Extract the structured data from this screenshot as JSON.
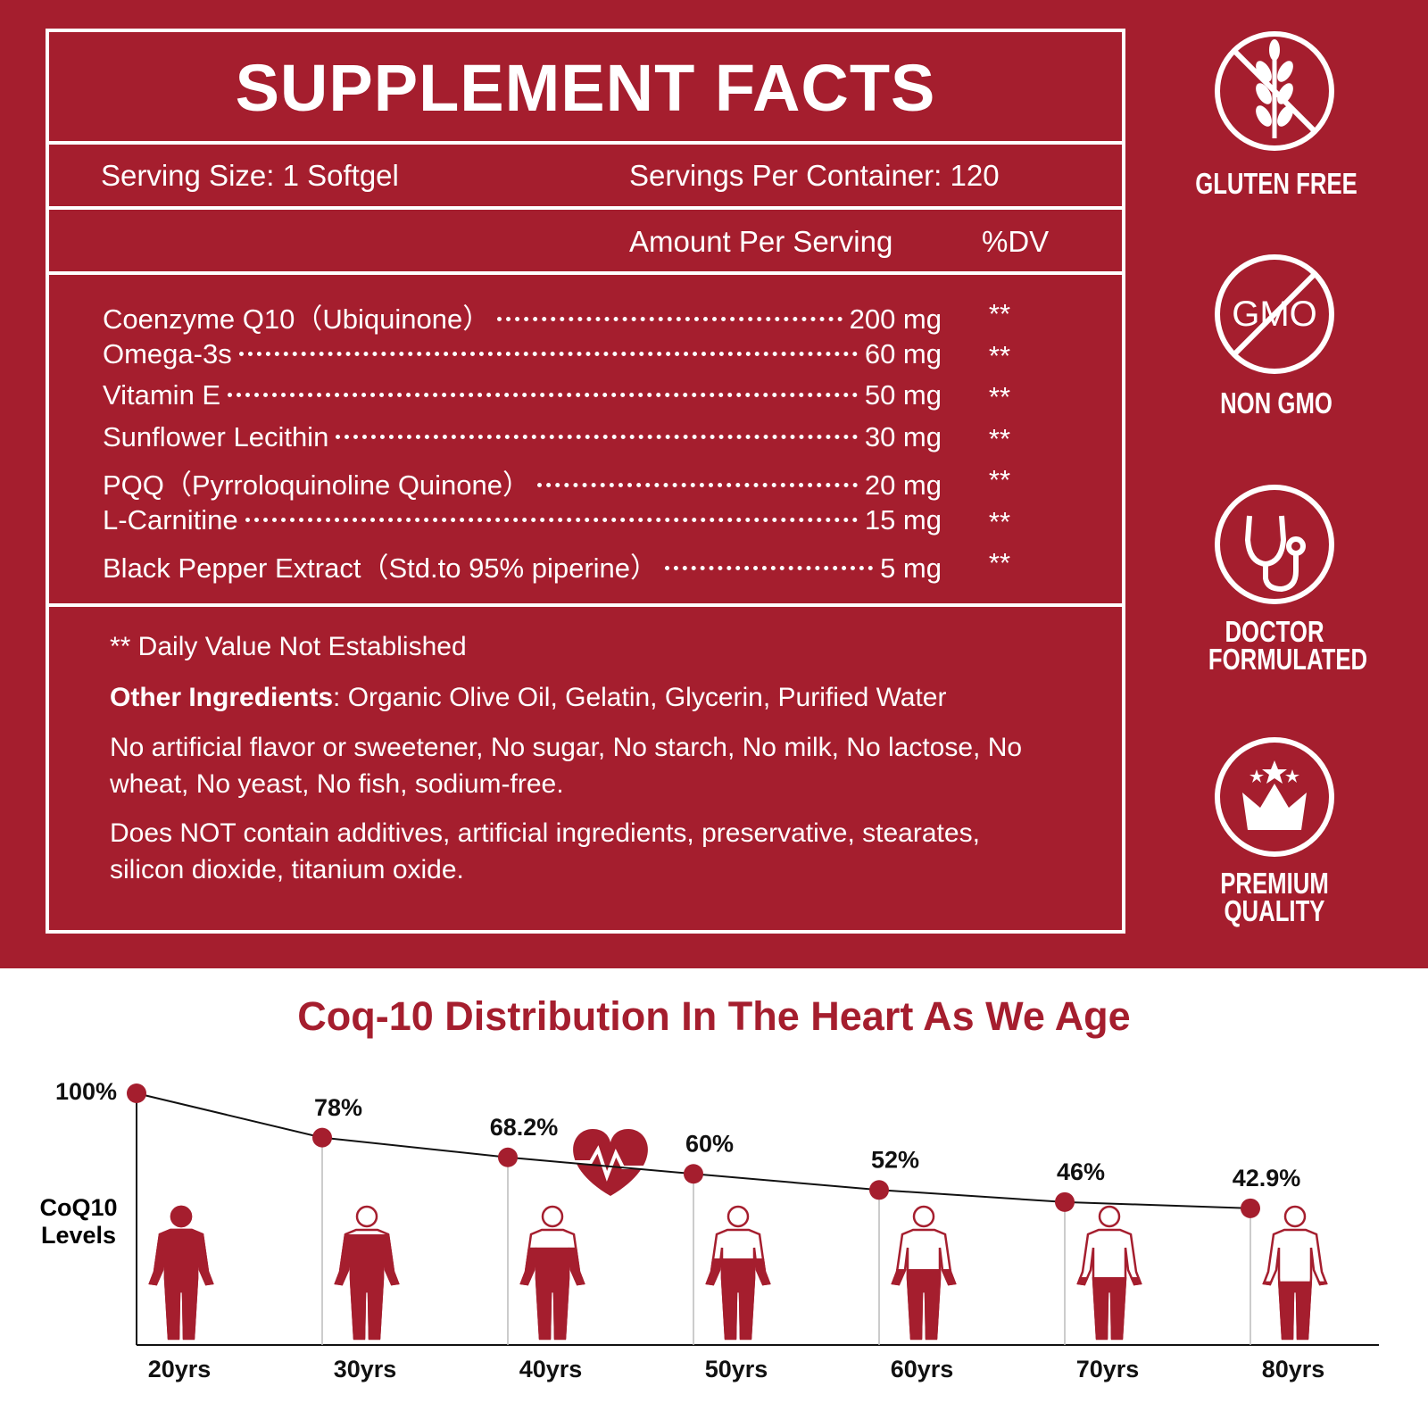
{
  "supplement_facts": {
    "title": "SUPPLEMENT FACTS",
    "serving_size": "Serving Size: 1 Softgel",
    "servings_per_container": "Servings Per Container: 120",
    "amount_header": "Amount Per Serving",
    "dv_header": "%DV",
    "ingredients": [
      {
        "name": "Coenzyme Q10（Ubiquinone）",
        "amount": "200 mg",
        "dv": "**"
      },
      {
        "name": "Omega-3s",
        "amount": "60 mg",
        "dv": "**"
      },
      {
        "name": "Vitamin E",
        "amount": "50 mg",
        "dv": "**"
      },
      {
        "name": "Sunflower Lecithin",
        "amount": "30 mg",
        "dv": "**"
      },
      {
        "name": "PQQ（Pyrroloquinoline Quinone）",
        "amount": "20 mg",
        "dv": "**"
      },
      {
        "name": "L-Carnitine",
        "amount": "15 mg",
        "dv": "**"
      },
      {
        "name": "Black Pepper Extract（Std.to 95% piperine）",
        "amount": "5 mg",
        "dv": "**"
      }
    ],
    "footnote": "** Daily Value Not Established",
    "other_label": "Other Ingredients",
    "other_text": ": Organic Olive Oil, Gelatin, Glycerin, Purified Water",
    "free_from": "No artificial flavor or sweetener, No sugar, No starch, No milk, No lactose, No wheat, No yeast, No fish, sodium-free.",
    "does_not_contain": "Does NOT contain additives, artificial ingredients, preservative, stearates, silicon dioxide, titanium oxide."
  },
  "badges": [
    {
      "label": "GLUTEN FREE"
    },
    {
      "label": "NON GMO",
      "icon_text": "GMO"
    },
    {
      "label": "DOCTOR FORMULATED"
    },
    {
      "label": "PREMIUM QUALITY"
    }
  ],
  "chart_data": {
    "type": "line",
    "title": "Coq-10 Distribution In The Heart As We Age",
    "y_label": "CoQ10 Levels",
    "categories": [
      "20yrs",
      "30yrs",
      "40yrs",
      "50yrs",
      "60yrs",
      "70yrs",
      "80yrs"
    ],
    "values": [
      100,
      78,
      68.2,
      60,
      52,
      46,
      42.9
    ],
    "value_labels": [
      "100%",
      "78%",
      "68.2%",
      "60%",
      "52%",
      "46%",
      "42.9%"
    ],
    "color": "#a51e2e",
    "ylim": [
      -25,
      100
    ]
  }
}
